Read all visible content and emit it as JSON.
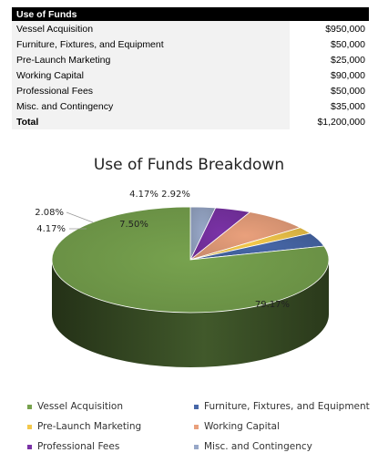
{
  "table": {
    "header": "Use of Funds",
    "rows": [
      {
        "label": "Vessel Acquisition",
        "value": "$950,000"
      },
      {
        "label": "Furniture, Fixtures, and Equipment",
        "value": "$50,000"
      },
      {
        "label": "Pre-Launch Marketing",
        "value": "$25,000"
      },
      {
        "label": "Working Capital",
        "value": "$90,000"
      },
      {
        "label": "Professional Fees",
        "value": "$50,000"
      },
      {
        "label": "Misc. and Contingency",
        "value": "$35,000"
      }
    ],
    "total_label": "Total",
    "total_value": "$1,200,000"
  },
  "chart_data": {
    "type": "pie",
    "title": "Use of Funds Breakdown",
    "categories": [
      "Vessel Acquisition",
      "Furniture, Fixtures, and Equipment",
      "Pre-Launch Marketing",
      "Working Capital",
      "Professional Fees",
      "Misc. and Contingency"
    ],
    "values": [
      950000,
      50000,
      25000,
      90000,
      50000,
      35000
    ],
    "data_labels": [
      "79.17%",
      "4.17%",
      "2.08%",
      "7.50%",
      "4.17%",
      "2.92%"
    ],
    "colors": [
      "#77a24e",
      "#4767a8",
      "#f3c84a",
      "#e9a07c",
      "#7a32a6",
      "#98a8c8"
    ],
    "legend_position": "bottom",
    "style": "3d"
  }
}
